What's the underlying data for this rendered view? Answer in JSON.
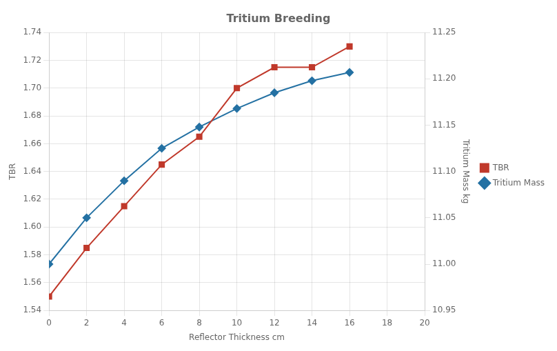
{
  "chart_data": {
    "type": "line",
    "title": "Tritium Breeding",
    "xlabel": "Reflector Thickness cm",
    "ylabel": "TBR",
    "y2label": "Tritium Mass kg",
    "x": [
      0,
      2,
      4,
      6,
      8,
      10,
      12,
      14,
      16
    ],
    "series": [
      {
        "name": "TBR",
        "color": "#c0392b",
        "marker": "square",
        "axis": "y",
        "values": [
          1.55,
          1.585,
          1.615,
          1.645,
          1.665,
          1.7,
          1.715,
          1.715,
          1.73
        ]
      },
      {
        "name": "Tritium Mass",
        "color": "#2471a3",
        "marker": "diamond",
        "axis": "y2",
        "values": [
          11.0,
          11.05,
          11.09,
          11.125,
          11.148,
          11.168,
          11.185,
          11.198,
          11.207
        ]
      }
    ],
    "xlim": [
      0,
      20
    ],
    "xticks": [
      0,
      2,
      4,
      6,
      8,
      10,
      12,
      14,
      16,
      18,
      20
    ],
    "ylim": [
      1.54,
      1.74
    ],
    "yticks": [
      1.54,
      1.56,
      1.58,
      {
        "value": 1.6,
        "label": "1.60"
      },
      1.62,
      1.64,
      1.66,
      1.68,
      {
        "value": 1.7,
        "label": "1.70"
      },
      1.72,
      1.74
    ],
    "y2lim": [
      10.95,
      11.25
    ],
    "y2ticks": [
      10.95,
      {
        "value": 11.0,
        "label": "11.00"
      },
      11.05,
      {
        "value": 11.1,
        "label": "11.10"
      },
      11.15,
      {
        "value": 11.2,
        "label": "11.20"
      },
      11.25
    ],
    "grid": true,
    "legend": "right"
  }
}
